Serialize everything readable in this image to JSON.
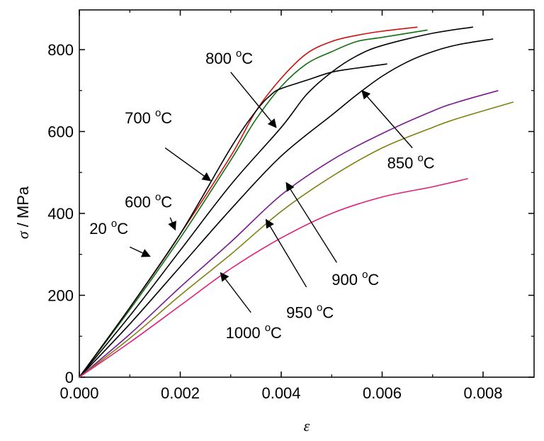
{
  "chart_data": {
    "type": "line",
    "title": "",
    "xlabel": "ε",
    "ylabel_symbol": "σ",
    "ylabel_unit": "/ MPa",
    "xlim": [
      0.0,
      0.009
    ],
    "ylim": [
      0,
      880
    ],
    "xticks": [
      0.0,
      0.002,
      0.004,
      0.006,
      0.008
    ],
    "xtick_labels": [
      "0.000",
      "0.002",
      "0.004",
      "0.006",
      "0.008"
    ],
    "yticks": [
      0,
      200,
      400,
      600,
      800
    ],
    "ytick_labels": [
      "0",
      "200",
      "400",
      "600",
      "800"
    ],
    "grid": false,
    "series": [
      {
        "name": "20 °C",
        "color": "#d01010",
        "points": [
          [
            0,
            0
          ],
          [
            0.001,
            170
          ],
          [
            0.002,
            350
          ],
          [
            0.003,
            540
          ],
          [
            0.0035,
            650
          ],
          [
            0.004,
            730
          ],
          [
            0.0045,
            790
          ],
          [
            0.005,
            820
          ],
          [
            0.0055,
            835
          ],
          [
            0.006,
            845
          ],
          [
            0.0067,
            855
          ]
        ]
      },
      {
        "name": "600 °C",
        "color": "#107010",
        "points": [
          [
            0,
            0
          ],
          [
            0.001,
            165
          ],
          [
            0.002,
            340
          ],
          [
            0.003,
            530
          ],
          [
            0.0035,
            630
          ],
          [
            0.004,
            710
          ],
          [
            0.0045,
            765
          ],
          [
            0.005,
            795
          ],
          [
            0.0055,
            820
          ],
          [
            0.006,
            830
          ],
          [
            0.0069,
            848
          ]
        ]
      },
      {
        "name": "700 °C",
        "color": "#000000",
        "points": [
          [
            0,
            0
          ],
          [
            0.001,
            170
          ],
          [
            0.002,
            350
          ],
          [
            0.003,
            560
          ],
          [
            0.0035,
            650
          ],
          [
            0.0038,
            690
          ],
          [
            0.004,
            705
          ],
          [
            0.0045,
            725
          ],
          [
            0.005,
            745
          ],
          [
            0.0055,
            755
          ],
          [
            0.0061,
            765
          ]
        ]
      },
      {
        "name": "800 °C",
        "color": "#000000",
        "points": [
          [
            0,
            0
          ],
          [
            0.001,
            150
          ],
          [
            0.002,
            310
          ],
          [
            0.003,
            470
          ],
          [
            0.004,
            610
          ],
          [
            0.0045,
            690
          ],
          [
            0.005,
            745
          ],
          [
            0.0055,
            785
          ],
          [
            0.006,
            810
          ],
          [
            0.007,
            840
          ],
          [
            0.0078,
            855
          ]
        ]
      },
      {
        "name": "850 °C",
        "color": "#000000",
        "points": [
          [
            0,
            0
          ],
          [
            0.001,
            130
          ],
          [
            0.002,
            270
          ],
          [
            0.003,
            410
          ],
          [
            0.004,
            540
          ],
          [
            0.005,
            640
          ],
          [
            0.0055,
            690
          ],
          [
            0.006,
            735
          ],
          [
            0.0065,
            770
          ],
          [
            0.007,
            795
          ],
          [
            0.0075,
            812
          ],
          [
            0.0082,
            826
          ]
        ]
      },
      {
        "name": "900 °C",
        "color": "#7a1a90",
        "points": [
          [
            0,
            0
          ],
          [
            0.001,
            105
          ],
          [
            0.002,
            220
          ],
          [
            0.003,
            330
          ],
          [
            0.004,
            445
          ],
          [
            0.005,
            530
          ],
          [
            0.006,
            595
          ],
          [
            0.007,
            650
          ],
          [
            0.0075,
            672
          ],
          [
            0.0083,
            700
          ]
        ]
      },
      {
        "name": "950 °C",
        "color": "#808010",
        "points": [
          [
            0,
            0
          ],
          [
            0.001,
            95
          ],
          [
            0.002,
            200
          ],
          [
            0.003,
            300
          ],
          [
            0.004,
            405
          ],
          [
            0.005,
            490
          ],
          [
            0.006,
            560
          ],
          [
            0.007,
            610
          ],
          [
            0.0075,
            632
          ],
          [
            0.0086,
            672
          ]
        ]
      },
      {
        "name": "1000 °C",
        "color": "#e0207a",
        "points": [
          [
            0,
            0
          ],
          [
            0.001,
            85
          ],
          [
            0.002,
            175
          ],
          [
            0.003,
            265
          ],
          [
            0.004,
            340
          ],
          [
            0.005,
            400
          ],
          [
            0.006,
            440
          ],
          [
            0.007,
            465
          ],
          [
            0.0077,
            485
          ]
        ]
      }
    ],
    "annotations": [
      {
        "base": "20 ",
        "sup": "o",
        "unit": "C",
        "text_at": [
          0.0002,
          350
        ],
        "arrow_from": [
          0.001,
          318
        ],
        "arrow_to": [
          0.0014,
          295
        ]
      },
      {
        "base": "600 ",
        "sup": "o",
        "unit": "C",
        "text_at": [
          0.0009,
          415
        ],
        "arrow_from": [
          0.0018,
          390
        ],
        "arrow_to": [
          0.0019,
          360
        ]
      },
      {
        "base": "700 ",
        "sup": "o",
        "unit": "C",
        "text_at": [
          0.0009,
          620
        ],
        "arrow_from": [
          0.0017,
          560
        ],
        "arrow_to": [
          0.0026,
          480
        ]
      },
      {
        "base": "800 ",
        "sup": "o",
        "unit": "C",
        "text_at": [
          0.0025,
          765
        ],
        "arrow_from": [
          0.003,
          745
        ],
        "arrow_to": [
          0.0039,
          610
        ]
      },
      {
        "base": "850 ",
        "sup": "o",
        "unit": "C",
        "text_at": [
          0.0061,
          510
        ],
        "arrow_from": [
          0.0066,
          560
        ],
        "arrow_to": [
          0.0056,
          700
        ]
      },
      {
        "base": "900 ",
        "sup": "o",
        "unit": "C",
        "text_at": [
          0.005,
          225
        ],
        "arrow_from": [
          0.0051,
          280
        ],
        "arrow_to": [
          0.0041,
          475
        ]
      },
      {
        "base": "950 ",
        "sup": "o",
        "unit": "C",
        "text_at": [
          0.0041,
          145
        ],
        "arrow_from": [
          0.0045,
          220
        ],
        "arrow_to": [
          0.0037,
          385
        ]
      },
      {
        "base": "1000 ",
        "sup": "o",
        "unit": "C",
        "text_at": [
          0.0029,
          95
        ],
        "arrow_from": [
          0.0034,
          158
        ],
        "arrow_to": [
          0.0028,
          255
        ]
      }
    ]
  }
}
